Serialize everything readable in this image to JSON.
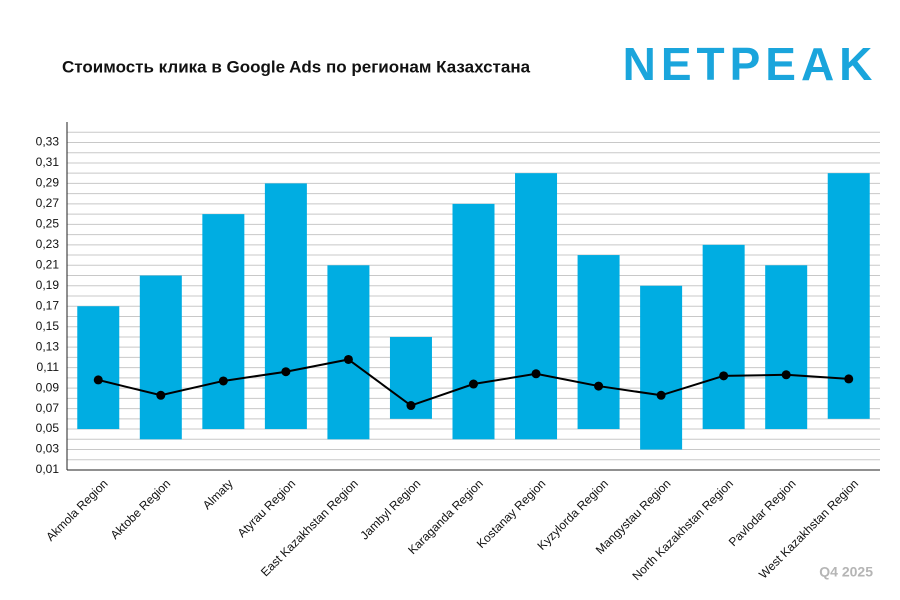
{
  "logo": "NETPEAK",
  "chart_data": {
    "type": "range-bar-line",
    "title": "Стоимость клика в Google Ads по регионам Казахстана",
    "period": "Q4 2025",
    "categories": [
      "Akmola Region",
      "Aktobe Region",
      "Almaty",
      "Atyrau Region",
      "East Kazakhstan Region",
      "Jambyl Region",
      "Karaganda Region",
      "Kostanay Region",
      "Kyzylorda Region",
      "Mangystau Region",
      "North Kazakhstan Region",
      "Pavlodar Region",
      "West Kazakhstan Region"
    ],
    "series": [
      {
        "type": "range",
        "color": "#00ade2",
        "low": [
          0.05,
          0.04,
          0.05,
          0.05,
          0.04,
          0.06,
          0.04,
          0.04,
          0.05,
          0.03,
          0.05,
          0.05,
          0.06
        ],
        "high": [
          0.17,
          0.2,
          0.26,
          0.29,
          0.21,
          0.14,
          0.27,
          0.3,
          0.22,
          0.19,
          0.23,
          0.21,
          0.3
        ]
      },
      {
        "type": "line",
        "color": "#000000",
        "values": [
          0.098,
          0.083,
          0.097,
          0.106,
          0.118,
          0.073,
          0.094,
          0.104,
          0.092,
          0.083,
          0.102,
          0.103,
          0.099
        ]
      }
    ],
    "ylim": [
      0.01,
      0.35
    ],
    "yticks": [
      {
        "value": 0.01,
        "label": "0,01"
      },
      {
        "value": 0.03,
        "label": "0,03"
      },
      {
        "value": 0.05,
        "label": "0,05"
      },
      {
        "value": 0.07,
        "label": "0,07"
      },
      {
        "value": 0.09,
        "label": "0,09"
      },
      {
        "value": 0.11,
        "label": "0,11"
      },
      {
        "value": 0.13,
        "label": "0,13"
      },
      {
        "value": 0.15,
        "label": "0,15"
      },
      {
        "value": 0.17,
        "label": "0,17"
      },
      {
        "value": 0.19,
        "label": "0,19"
      },
      {
        "value": 0.21,
        "label": "0,21"
      },
      {
        "value": 0.23,
        "label": "0,23"
      },
      {
        "value": 0.25,
        "label": "0,25"
      },
      {
        "value": 0.27,
        "label": "0,27"
      },
      {
        "value": 0.29,
        "label": "0,29"
      },
      {
        "value": 0.31,
        "label": "0,31"
      },
      {
        "value": 0.33,
        "label": "0,33"
      }
    ],
    "minor_yticks": [
      0.02,
      0.04,
      0.06,
      0.08,
      0.1,
      0.12,
      0.14,
      0.16,
      0.18,
      0.2,
      0.22,
      0.24,
      0.26,
      0.28,
      0.3,
      0.32,
      0.34
    ],
    "grid": true
  }
}
